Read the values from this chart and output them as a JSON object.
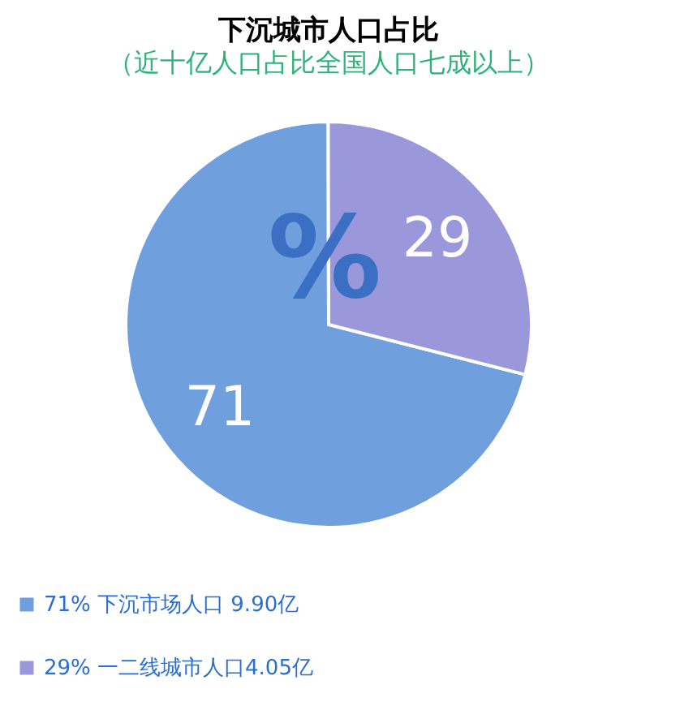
{
  "chart_data": {
    "type": "pie",
    "title": "下沉城市人口占比",
    "subtitle": "（近十亿人口占比全国人口七成以上）",
    "categories": [
      "71% 下沉市场人口 9.90亿",
      "29% 一二线城市人口4.05亿"
    ],
    "values": [
      71,
      29
    ],
    "colors": [
      "#6f9fdc",
      "#9b97db"
    ],
    "data_labels": true,
    "legend": "bottom",
    "annotations": [
      "%"
    ]
  }
}
